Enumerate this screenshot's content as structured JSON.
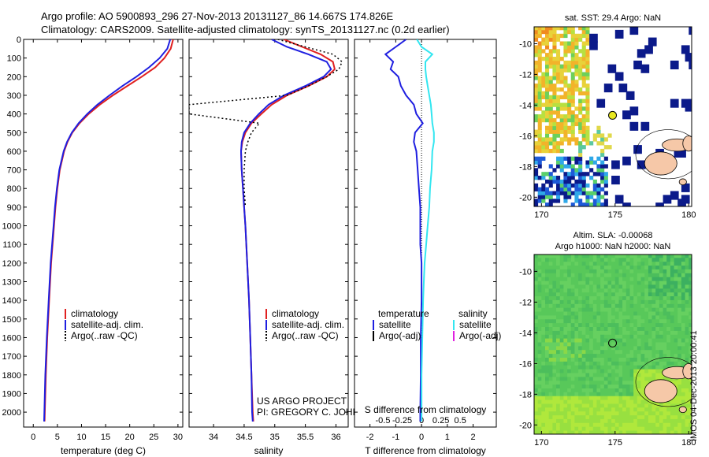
{
  "header": {
    "title_line1": "Argo profile: AO 5900893_296 27-Nov-2013 20131127_86 14.667S 174.826E",
    "title_line2": "Climatology: CARS2009. Satellite-adjusted climatology: synTS_20131127.nc (0.2d earlier)"
  },
  "footer": {
    "project_line1": "US ARGO PROJECT",
    "project_line2": "PI: GREGORY C. JOHNSON",
    "timestamp": "IMOS 04-Dec-2013 20:00:41"
  },
  "colors": {
    "climatology": "#e02020",
    "satellite": "#1f1fe0",
    "argo": "#000000",
    "salinity_satellite": "#33e6f0",
    "salinity_argo": "#e020e0"
  },
  "chart_data": [
    {
      "id": "temperature",
      "type": "line",
      "xlabel": "temperature (deg C)",
      "ylabel": "",
      "xlim": [
        -2,
        31
      ],
      "ylim": [
        2080,
        0
      ],
      "xticks": [
        0,
        5,
        10,
        15,
        20,
        25,
        30
      ],
      "yticks": [
        0,
        100,
        200,
        300,
        400,
        500,
        600,
        700,
        800,
        900,
        1000,
        1100,
        1200,
        1300,
        1400,
        1500,
        1600,
        1700,
        1800,
        1900,
        2000
      ],
      "legend": [
        "climatology",
        "satellite-adj. clim.",
        "Argo(..raw -QC)"
      ],
      "depth": [
        0,
        50,
        100,
        150,
        200,
        250,
        300,
        350,
        400,
        450,
        500,
        550,
        600,
        700,
        800,
        900,
        1000,
        1200,
        1400,
        1600,
        1800,
        2000,
        2050
      ],
      "series": [
        {
          "name": "climatology",
          "color_key": "climatology",
          "style": "solid",
          "values": [
            29.0,
            28.5,
            27.2,
            25.3,
            22.5,
            19.5,
            16.5,
            13.8,
            11.5,
            9.6,
            8.1,
            7.1,
            6.4,
            5.5,
            5.0,
            4.6,
            4.3,
            3.7,
            3.3,
            2.9,
            2.6,
            2.4,
            2.35
          ]
        },
        {
          "name": "satellite-adj. clim.",
          "color_key": "satellite",
          "style": "solid",
          "values": [
            28.4,
            27.8,
            26.2,
            24.0,
            21.4,
            18.5,
            15.8,
            13.3,
            11.2,
            9.4,
            8.0,
            7.0,
            6.3,
            5.4,
            4.9,
            4.5,
            4.2,
            3.6,
            3.2,
            2.8,
            2.5,
            2.3,
            2.25
          ]
        },
        {
          "name": "Argo(..raw -QC)",
          "color_key": "argo",
          "style": "dotted",
          "values": []
        }
      ]
    },
    {
      "id": "salinity",
      "type": "line",
      "xlabel": "salinity",
      "xlim": [
        33.6,
        36.2
      ],
      "ylim": [
        2080,
        0
      ],
      "xticks": [
        34,
        34.5,
        35,
        35.5,
        36
      ],
      "legend": [
        "climatology",
        "satellite-adj. clim.",
        "Argo(..raw -QC)"
      ],
      "depth": [
        0,
        40,
        80,
        120,
        160,
        200,
        250,
        300,
        350,
        400,
        450,
        500,
        550,
        600,
        700,
        800,
        900,
        1000,
        1200,
        1400,
        1600,
        1800,
        2000,
        2050
      ],
      "series": [
        {
          "name": "climatology",
          "color_key": "climatology",
          "style": "solid",
          "values": [
            35.15,
            35.45,
            35.75,
            35.95,
            35.98,
            35.85,
            35.55,
            35.2,
            34.95,
            34.78,
            34.62,
            34.52,
            34.47,
            34.45,
            34.46,
            34.48,
            34.5,
            34.52,
            34.55,
            34.58,
            34.6,
            34.62,
            34.64,
            34.65
          ]
        },
        {
          "name": "satellite-adj. clim.",
          "color_key": "satellite",
          "style": "solid",
          "values": [
            34.95,
            35.2,
            35.55,
            35.85,
            35.92,
            35.8,
            35.5,
            35.15,
            34.9,
            34.74,
            34.6,
            34.5,
            34.46,
            34.45,
            34.46,
            34.48,
            34.5,
            34.52,
            34.55,
            34.58,
            34.6,
            34.62,
            34.63,
            34.64
          ]
        },
        {
          "name": "Argo(..raw -QC)",
          "color_key": "argo",
          "style": "dotted",
          "values": [
            35.05,
            35.5,
            35.95,
            36.1,
            36.05,
            35.85,
            35.55,
            35.2,
            33.6,
            33.6,
            34.75,
            34.62,
            34.56,
            34.52,
            34.5,
            34.5,
            34.52,
            null,
            null,
            null,
            null,
            null,
            null,
            null
          ]
        }
      ]
    },
    {
      "id": "difference",
      "type": "line",
      "xlabel": "T difference from climatology",
      "xlabel_top": "S difference from climatology",
      "xlim": [
        -2.6,
        2.9
      ],
      "ylim": [
        2080,
        0
      ],
      "xticks_t": [
        -2,
        -1,
        0,
        1,
        2
      ],
      "xticks_s": [
        "-0.5",
        "-0.25",
        "0",
        "0.25",
        "0.5"
      ],
      "xticks_s_values": [
        -0.5,
        -0.25,
        0,
        0.25,
        0.5
      ],
      "legend_temperature_title": "temperature",
      "legend_temperature": [
        "satellite",
        "Argo(-adj)"
      ],
      "legend_salinity_title": "salinity",
      "legend_salinity": [
        "satellite",
        "Argo(-adj)"
      ],
      "depth": [
        0,
        40,
        80,
        120,
        160,
        200,
        250,
        300,
        350,
        400,
        450,
        500,
        550,
        600,
        700,
        800,
        900,
        1000,
        1100,
        1200,
        1300,
        1400,
        1600,
        1800,
        2000,
        2050
      ],
      "series": [
        {
          "name": "temperature satellite",
          "color_key": "satellite",
          "style": "solid",
          "values": [
            -0.6,
            -1.0,
            -1.4,
            -1.1,
            -1.2,
            -0.9,
            -0.8,
            -0.6,
            -0.3,
            -0.2,
            0.05,
            -0.25,
            -0.3,
            -0.2,
            -0.15,
            -0.1,
            -0.05,
            -0.05,
            -0.05,
            0.0,
            0.0,
            0.0,
            -0.03,
            -0.03,
            -0.05,
            -0.05
          ]
        },
        {
          "name": "salinity satellite",
          "color_key": "salinity_satellite",
          "style": "solid",
          "values": [
            -0.06,
            0.0,
            0.14,
            0.05,
            0.05,
            0.06,
            0.08,
            0.1,
            0.12,
            0.13,
            0.14,
            0.16,
            0.16,
            0.14,
            0.13,
            0.11,
            0.1,
            0.08,
            0.06,
            0.04,
            0.03,
            0.02,
            0.01,
            0.0,
            0.0,
            0.0
          ]
        }
      ]
    }
  ],
  "maps": [
    {
      "id": "sst-map",
      "title": "sat. SST: 29.4  Argo: NaN",
      "xticks": [
        "170",
        "175",
        "180"
      ],
      "yticks": [
        "-10",
        "-12",
        "-14",
        "-16",
        "-18",
        "-20"
      ],
      "float_lon": 174.826,
      "float_lat": -14.667,
      "lon_range": [
        169.5,
        180.2
      ],
      "lat_range": [
        -20.6,
        -8.9
      ]
    },
    {
      "id": "sla-map",
      "title_line1": "Altim. SLA: -0.00068",
      "title_line2": "Argo h1000: NaN h2000: NaN",
      "xticks": [
        "170",
        "175",
        "180"
      ],
      "yticks": [
        "-10",
        "-12",
        "-14",
        "-16",
        "-18",
        "-20"
      ],
      "float_lon": 174.826,
      "float_lat": -14.667,
      "lon_range": [
        169.5,
        180.2
      ],
      "lat_range": [
        -20.6,
        -8.9
      ]
    }
  ]
}
